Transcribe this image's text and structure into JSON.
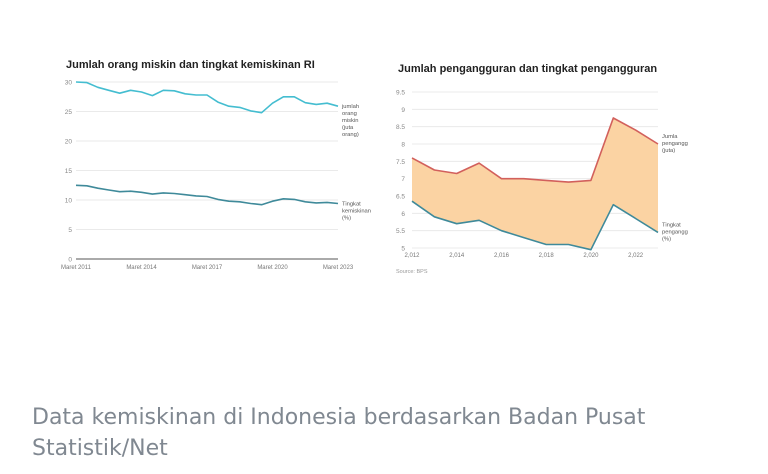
{
  "chart_data": [
    {
      "type": "line",
      "title": "Jumlah orang miskin dan tingkat kemiskinan RI",
      "x": [
        "Maret 2011",
        "Sep 2011",
        "Maret 2012",
        "Sep 2012",
        "Maret 2013",
        "Sep 2013",
        "Maret 2014",
        "Sep 2014",
        "Maret 2015",
        "Sep 2015",
        "Maret 2016",
        "Sep 2016",
        "Maret 2017",
        "Sep 2017",
        "Maret 2018",
        "Sep 2018",
        "Maret 2019",
        "Sep 2019",
        "Maret 2020",
        "Sep 2020",
        "Maret 2021",
        "Sep 2021",
        "Maret 2022",
        "Sep 2022",
        "Maret 2023"
      ],
      "x_tick_labels": [
        "Maret 2011",
        "Maret 2014",
        "Maret 2017",
        "Maret 2020",
        "Maret 2023"
      ],
      "y_ticks": [
        "0",
        "5",
        "10",
        "15",
        "20",
        "25",
        "30"
      ],
      "ylim": [
        0,
        30
      ],
      "grid": true,
      "series": [
        {
          "name": "jumlah orang miskin (juta orang)",
          "label_lines": [
            "jumlah",
            "orang",
            "miskin",
            "(juta",
            "orang)"
          ],
          "color": "#44bdd0",
          "values": [
            30.0,
            29.9,
            29.1,
            28.6,
            28.1,
            28.6,
            28.3,
            27.7,
            28.6,
            28.5,
            28.0,
            27.8,
            27.8,
            26.6,
            25.9,
            25.7,
            25.1,
            24.8,
            26.4,
            27.5,
            27.5,
            26.5,
            26.2,
            26.4,
            25.9
          ]
        },
        {
          "name": "Tingkat kemiskinan (%)",
          "label_lines": [
            "Tingkat",
            "kemiskinan",
            "(%)"
          ],
          "color": "#3f8a9a",
          "values": [
            12.5,
            12.4,
            12.0,
            11.7,
            11.4,
            11.5,
            11.3,
            11.0,
            11.2,
            11.1,
            10.9,
            10.7,
            10.6,
            10.1,
            9.8,
            9.7,
            9.4,
            9.2,
            9.8,
            10.2,
            10.1,
            9.7,
            9.5,
            9.6,
            9.4
          ]
        }
      ]
    },
    {
      "type": "area",
      "title": "Jumlah pengangguran dan tingkat pengangguran",
      "x": [
        2012,
        2013,
        2014,
        2015,
        2016,
        2017,
        2018,
        2019,
        2020,
        2021,
        2022,
        2023
      ],
      "x_tick_labels": [
        "2,012",
        "2,014",
        "2,016",
        "2,018",
        "2,020",
        "2,022"
      ],
      "x_tick_values": [
        2012,
        2014,
        2016,
        2018,
        2020,
        2022
      ],
      "y_ticks": [
        "5",
        "5.5",
        "6",
        "6.5",
        "7",
        "7.5",
        "8",
        "8.5",
        "9",
        "9.5"
      ],
      "ylim": [
        5,
        9.5
      ],
      "grid": true,
      "fill_color": "#fbd3a3",
      "series": [
        {
          "name": "Jumla penganggur (juta)",
          "label_lines": [
            "Jumla",
            "penganggur",
            "(juta)"
          ],
          "color": "#d2605c",
          "values": [
            7.6,
            7.25,
            7.15,
            7.45,
            7.0,
            7.0,
            6.95,
            6.9,
            6.95,
            8.75,
            8.4,
            8.0
          ]
        },
        {
          "name": "Tingkat pengangguran (%)",
          "label_lines": [
            "Tingkat",
            "pengangguran",
            "(%)"
          ],
          "color": "#3f8a9a",
          "values": [
            6.35,
            5.9,
            5.7,
            5.8,
            5.5,
            5.3,
            5.1,
            5.1,
            4.95,
            6.25,
            5.85,
            5.45
          ]
        }
      ],
      "source": "Source: BPS"
    }
  ],
  "caption": "Data kemiskinan di Indonesia berdasarkan Badan Pusat Statistik/Net"
}
